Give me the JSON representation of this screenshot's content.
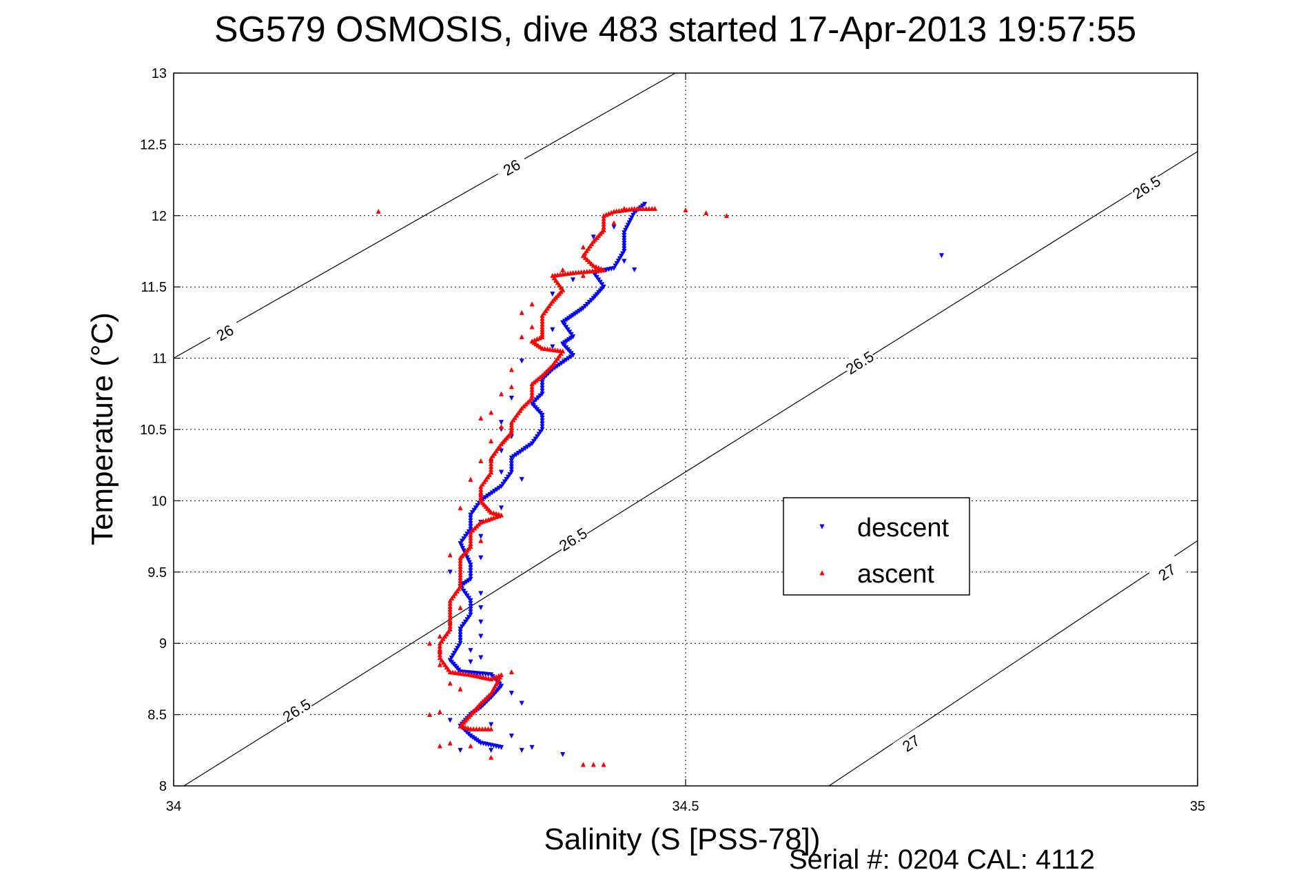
{
  "chart_data": {
    "type": "scatter",
    "title": "SG579 OSMOSIS, dive 483 started 17-Apr-2013 19:57:55",
    "xlabel": "Salinity (S [PSS-78])",
    "ylabel": "Temperature (°C)",
    "footer": "Serial #: 0204  CAL: 4112",
    "xlim": [
      34,
      35
    ],
    "ylim": [
      8,
      13
    ],
    "x_ticks": [
      "34",
      "34.5",
      "35"
    ],
    "x_tick_values": [
      34,
      34.5,
      35
    ],
    "y_ticks": [
      "8",
      "8.5",
      "9",
      "9.5",
      "10",
      "10.5",
      "11",
      "11.5",
      "12",
      "12.5",
      "13"
    ],
    "y_tick_values": [
      8,
      8.5,
      9,
      9.5,
      10,
      10.5,
      11,
      11.5,
      12,
      12.5,
      13
    ],
    "grid": true,
    "legend_position": "center-right",
    "density_contours": [
      {
        "level": "26",
        "points": [
          [
            34.0,
            11.0
          ],
          [
            34.49,
            13.0
          ]
        ],
        "labels": [
          [
            34.05,
            11.18
          ],
          [
            34.33,
            12.34
          ]
        ]
      },
      {
        "level": "26.5",
        "points": [
          [
            34.01,
            8.0
          ],
          [
            35.0,
            12.45
          ]
        ],
        "labels": [
          [
            34.12,
            8.53
          ],
          [
            34.39,
            9.73
          ],
          [
            34.67,
            10.97
          ],
          [
            34.95,
            12.2
          ]
        ]
      },
      {
        "level": "27",
        "points": [
          [
            34.64,
            8.0
          ],
          [
            35.0,
            9.72
          ]
        ],
        "labels": [
          [
            34.72,
            8.3
          ],
          [
            34.97,
            9.5
          ]
        ]
      }
    ],
    "series": [
      {
        "name": "descent",
        "color": "#0000ff",
        "marker": "triangle-down",
        "path": [
          [
            34.46,
            12.08
          ],
          [
            34.45,
            12.02
          ],
          [
            34.44,
            11.88
          ],
          [
            34.44,
            11.75
          ],
          [
            34.43,
            11.63
          ],
          [
            34.41,
            11.6
          ],
          [
            34.42,
            11.5
          ],
          [
            34.41,
            11.42
          ],
          [
            34.4,
            11.35
          ],
          [
            34.39,
            11.3
          ],
          [
            34.38,
            11.25
          ],
          [
            34.39,
            11.15
          ],
          [
            34.38,
            11.1
          ],
          [
            34.39,
            11.02
          ],
          [
            34.37,
            10.92
          ],
          [
            34.36,
            10.85
          ],
          [
            34.36,
            10.75
          ],
          [
            34.35,
            10.68
          ],
          [
            34.36,
            10.6
          ],
          [
            34.36,
            10.5
          ],
          [
            34.35,
            10.4
          ],
          [
            34.33,
            10.3
          ],
          [
            34.33,
            10.2
          ],
          [
            34.32,
            10.1
          ],
          [
            34.3,
            10.0
          ],
          [
            34.29,
            9.9
          ],
          [
            34.29,
            9.8
          ],
          [
            34.28,
            9.7
          ],
          [
            34.29,
            9.55
          ],
          [
            34.29,
            9.45
          ],
          [
            34.28,
            9.4
          ],
          [
            34.29,
            9.3
          ],
          [
            34.29,
            9.2
          ],
          [
            34.28,
            9.1
          ],
          [
            34.28,
            9.0
          ],
          [
            34.27,
            8.88
          ],
          [
            34.28,
            8.8
          ],
          [
            34.31,
            8.78
          ],
          [
            34.32,
            8.7
          ],
          [
            34.31,
            8.62
          ],
          [
            34.3,
            8.55
          ],
          [
            34.29,
            8.5
          ],
          [
            34.28,
            8.42
          ],
          [
            34.29,
            8.35
          ],
          [
            34.3,
            8.3
          ],
          [
            34.32,
            8.27
          ]
        ],
        "scatter": [
          [
            34.43,
            11.92
          ],
          [
            34.41,
            11.85
          ],
          [
            34.44,
            11.68
          ],
          [
            34.45,
            11.62
          ],
          [
            34.39,
            11.55
          ],
          [
            34.37,
            11.45
          ],
          [
            34.37,
            11.2
          ],
          [
            34.37,
            11.08
          ],
          [
            34.34,
            10.98
          ],
          [
            34.33,
            10.72
          ],
          [
            34.32,
            10.55
          ],
          [
            34.33,
            10.45
          ],
          [
            34.32,
            10.35
          ],
          [
            34.31,
            10.27
          ],
          [
            34.32,
            10.2
          ],
          [
            34.34,
            10.15
          ],
          [
            34.32,
            9.95
          ],
          [
            34.3,
            9.85
          ],
          [
            34.3,
            9.75
          ],
          [
            34.3,
            9.6
          ],
          [
            34.27,
            9.5
          ],
          [
            34.3,
            9.35
          ],
          [
            34.3,
            9.25
          ],
          [
            34.3,
            9.15
          ],
          [
            34.3,
            9.05
          ],
          [
            34.29,
            8.95
          ],
          [
            34.3,
            8.9
          ],
          [
            34.33,
            8.65
          ],
          [
            34.34,
            8.58
          ],
          [
            34.27,
            8.46
          ],
          [
            34.33,
            8.35
          ],
          [
            34.31,
            8.25
          ],
          [
            34.28,
            8.25
          ],
          [
            34.34,
            8.25
          ],
          [
            34.35,
            8.27
          ],
          [
            34.38,
            8.22
          ],
          [
            34.32,
            10.5
          ],
          [
            34.75,
            11.72
          ],
          [
            34.29,
            8.87
          ],
          [
            34.31,
            8.43
          ]
        ]
      },
      {
        "name": "ascent",
        "color": "#ff0000",
        "marker": "triangle-up",
        "path": [
          [
            34.47,
            12.05
          ],
          [
            34.45,
            12.05
          ],
          [
            34.43,
            12.03
          ],
          [
            34.42,
            12.0
          ],
          [
            34.42,
            11.9
          ],
          [
            34.41,
            11.82
          ],
          [
            34.4,
            11.72
          ],
          [
            34.41,
            11.65
          ],
          [
            34.42,
            11.62
          ],
          [
            34.39,
            11.6
          ],
          [
            34.37,
            11.58
          ],
          [
            34.38,
            11.48
          ],
          [
            34.37,
            11.4
          ],
          [
            34.36,
            11.3
          ],
          [
            34.36,
            11.22
          ],
          [
            34.36,
            11.15
          ],
          [
            34.35,
            11.12
          ],
          [
            34.36,
            11.07
          ],
          [
            34.37,
            11.06
          ],
          [
            34.38,
            11.05
          ],
          [
            34.37,
            10.95
          ],
          [
            34.36,
            10.88
          ],
          [
            34.35,
            10.82
          ],
          [
            34.35,
            10.72
          ],
          [
            34.34,
            10.65
          ],
          [
            34.33,
            10.55
          ],
          [
            34.33,
            10.48
          ],
          [
            34.32,
            10.4
          ],
          [
            34.31,
            10.3
          ],
          [
            34.31,
            10.2
          ],
          [
            34.3,
            10.1
          ],
          [
            34.3,
            10.0
          ],
          [
            34.31,
            9.92
          ],
          [
            34.32,
            9.9
          ],
          [
            34.3,
            9.85
          ],
          [
            34.29,
            9.78
          ],
          [
            34.29,
            9.68
          ],
          [
            34.28,
            9.6
          ],
          [
            34.28,
            9.5
          ],
          [
            34.28,
            9.4
          ],
          [
            34.27,
            9.3
          ],
          [
            34.27,
            9.2
          ],
          [
            34.27,
            9.1
          ],
          [
            34.26,
            9.0
          ],
          [
            34.26,
            8.9
          ],
          [
            34.27,
            8.8
          ],
          [
            34.29,
            8.78
          ],
          [
            34.31,
            8.75
          ],
          [
            34.32,
            8.78
          ],
          [
            34.31,
            8.65
          ],
          [
            34.3,
            8.58
          ],
          [
            34.29,
            8.5
          ],
          [
            34.28,
            8.42
          ],
          [
            34.29,
            8.4
          ],
          [
            34.31,
            8.4
          ]
        ],
        "scatter": [
          [
            34.44,
            12.05
          ],
          [
            34.5,
            12.04
          ],
          [
            34.52,
            12.02
          ],
          [
            34.54,
            12.0
          ],
          [
            34.2,
            12.03
          ],
          [
            34.43,
            11.95
          ],
          [
            34.4,
            11.78
          ],
          [
            34.38,
            11.62
          ],
          [
            34.4,
            11.58
          ],
          [
            34.35,
            11.38
          ],
          [
            34.34,
            11.32
          ],
          [
            34.35,
            11.22
          ],
          [
            34.34,
            11.15
          ],
          [
            34.33,
            10.92
          ],
          [
            34.33,
            10.8
          ],
          [
            34.32,
            10.75
          ],
          [
            34.31,
            10.62
          ],
          [
            34.3,
            10.58
          ],
          [
            34.32,
            10.52
          ],
          [
            34.31,
            10.42
          ],
          [
            34.3,
            10.28
          ],
          [
            34.29,
            10.15
          ],
          [
            34.3,
            10.05
          ],
          [
            34.28,
            9.95
          ],
          [
            34.3,
            9.72
          ],
          [
            34.27,
            9.62
          ],
          [
            34.28,
            9.25
          ],
          [
            34.27,
            9.15
          ],
          [
            34.26,
            9.05
          ],
          [
            34.26,
            8.95
          ],
          [
            34.25,
            9.0
          ],
          [
            34.26,
            8.85
          ],
          [
            34.27,
            8.72
          ],
          [
            34.28,
            8.68
          ],
          [
            34.26,
            8.52
          ],
          [
            34.25,
            8.5
          ],
          [
            34.27,
            8.3
          ],
          [
            34.26,
            8.28
          ],
          [
            34.29,
            8.28
          ],
          [
            34.31,
            8.2
          ],
          [
            34.4,
            8.15
          ],
          [
            34.41,
            8.15
          ],
          [
            34.42,
            8.15
          ],
          [
            34.33,
            8.8
          ]
        ]
      }
    ]
  }
}
